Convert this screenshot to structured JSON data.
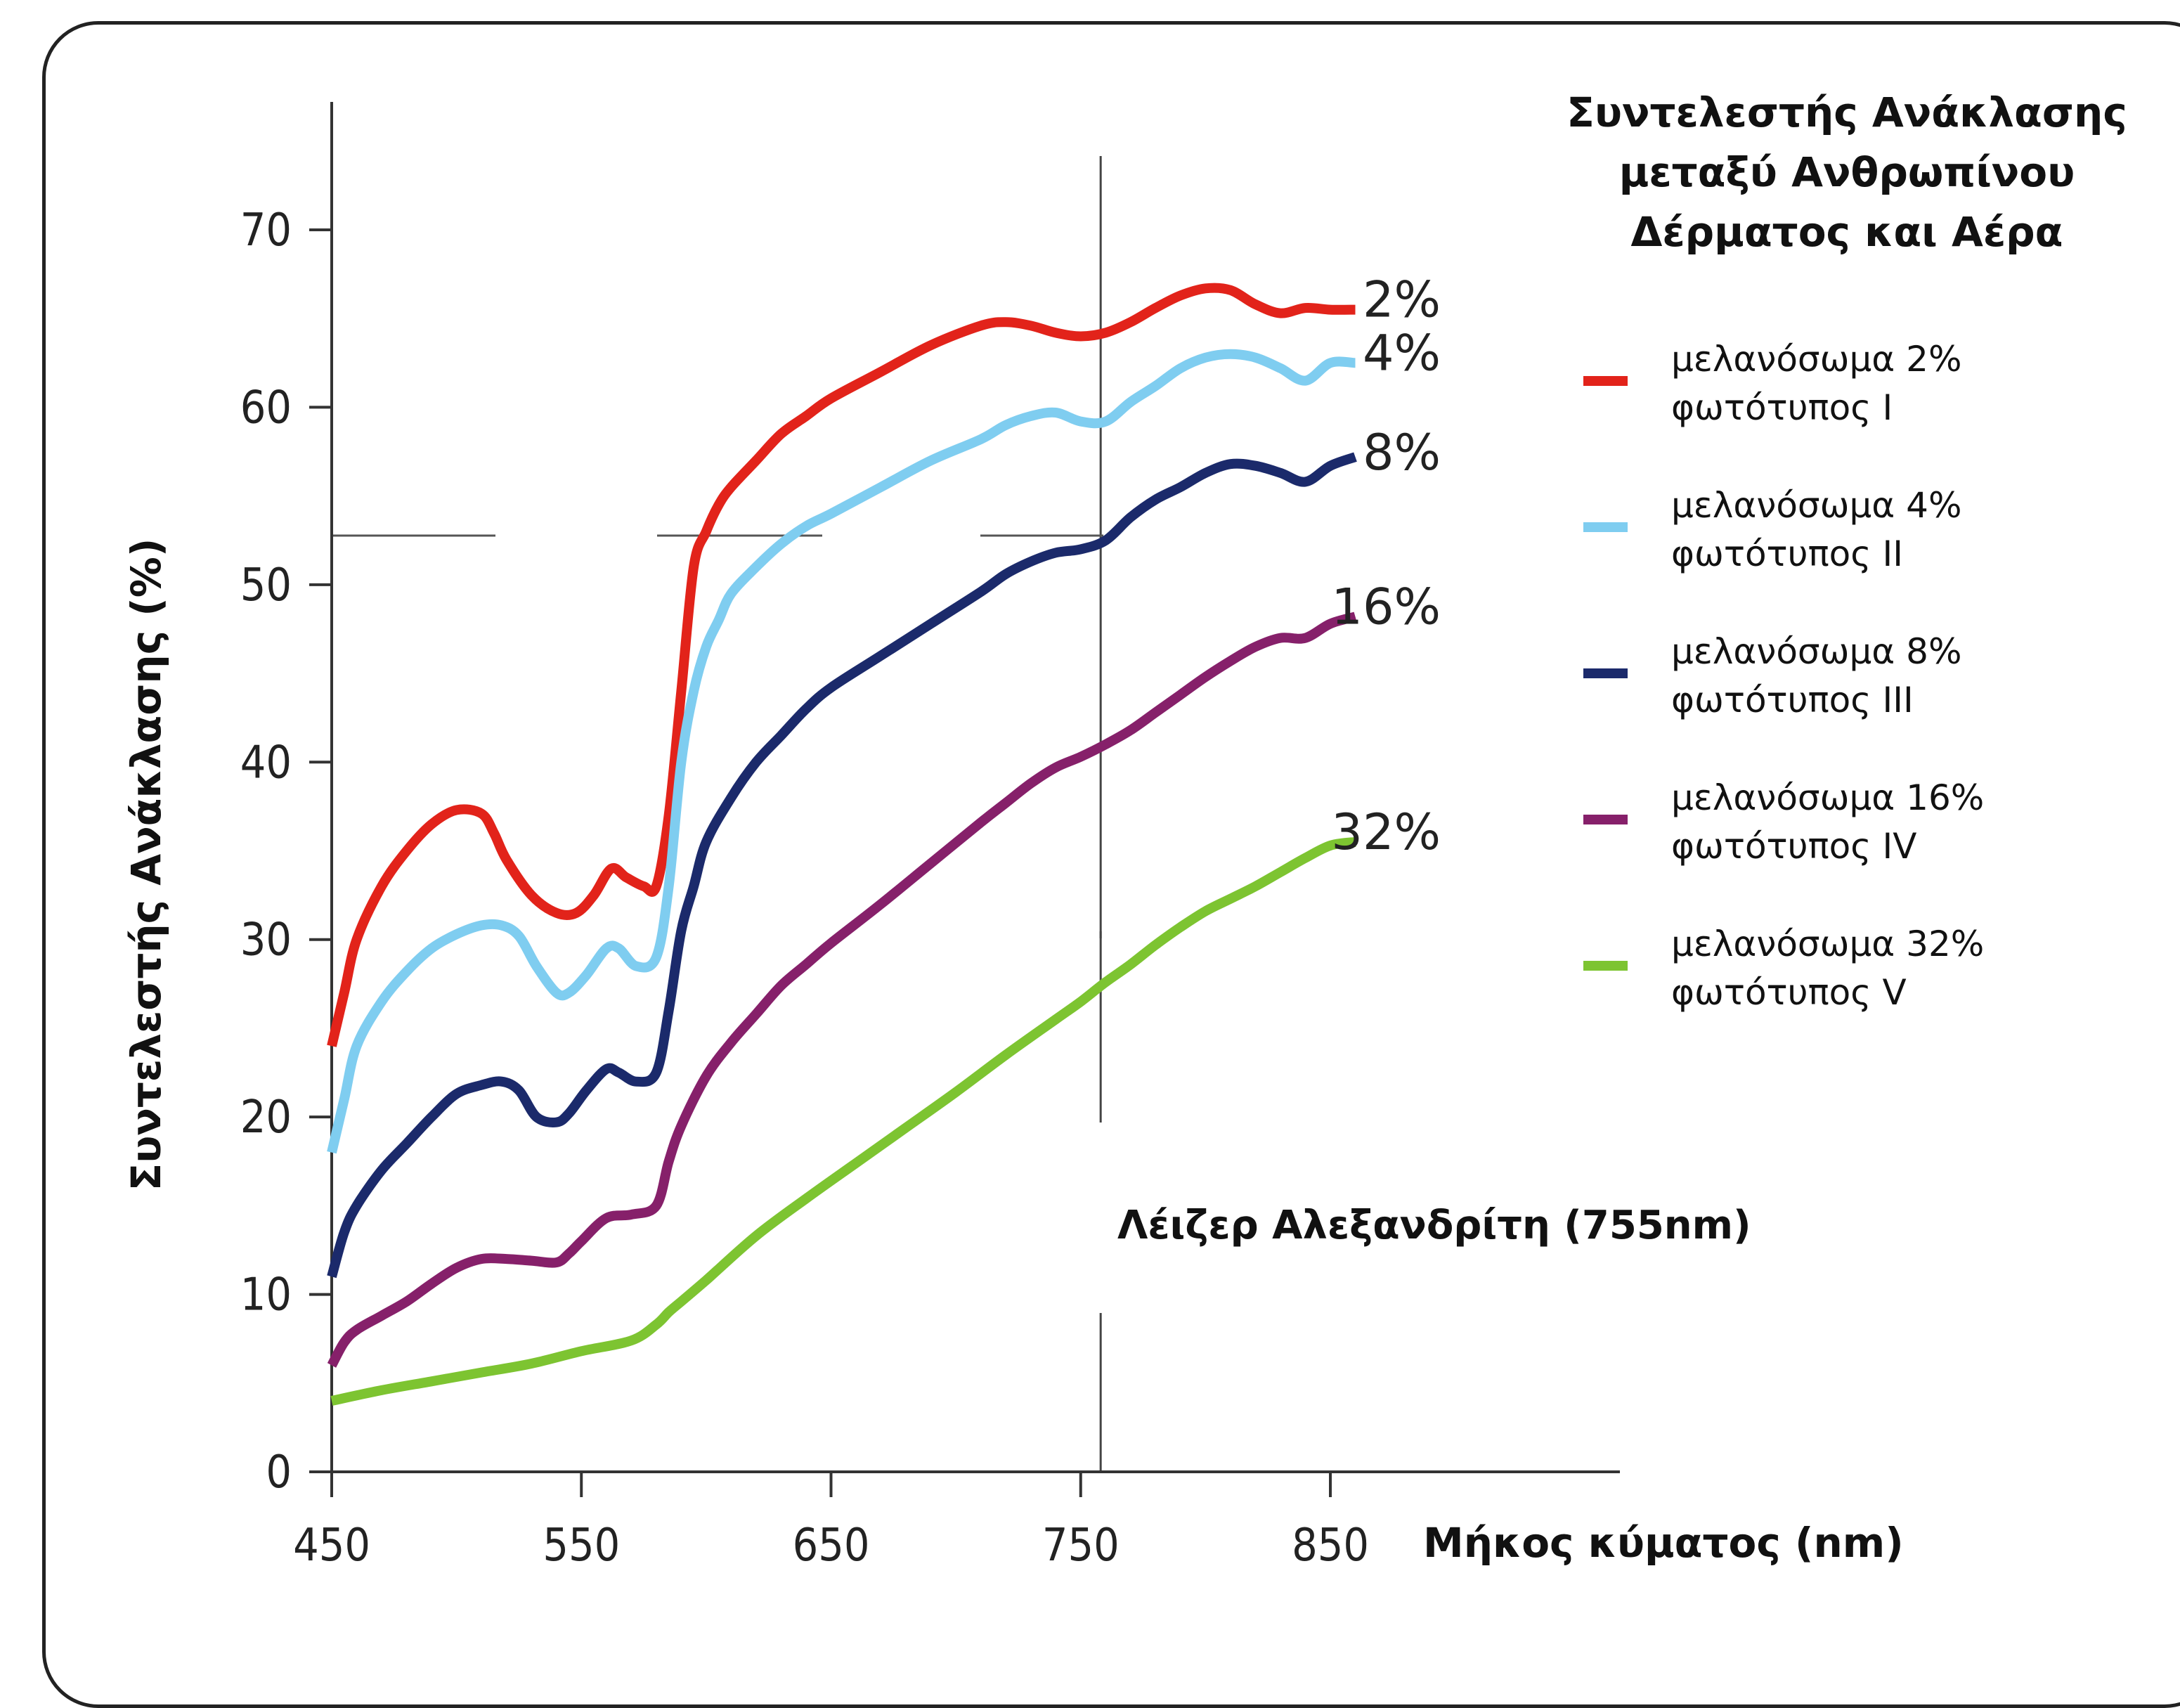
{
  "chart_data": {
    "type": "line",
    "title": "Συντελεστής Ανάκλασης μεταξύ Ανθρωπίνου Δέρματος και Αέρα",
    "title_lines": [
      "Συντελεστής Ανάκλασης",
      "μεταξύ Ανθρωπίνου",
      "Δέρματος και Αέρα"
    ],
    "xlabel": "Μήκος κύματος (nm)",
    "ylabel": "Συντελεστής Ανάκλασης (%)",
    "xlim": [
      450,
      860
    ],
    "ylim": [
      0,
      70
    ],
    "xticks": [
      450,
      550,
      650,
      750,
      850
    ],
    "yticks": [
      0,
      10,
      20,
      30,
      40,
      50,
      60,
      70
    ],
    "grid": false,
    "legend_position": "right",
    "annotation": {
      "text": "Λέιζερ Αλεξανδρίτη (755nm)",
      "x": 758
    },
    "series": [
      {
        "name": "μελανόσωμα 2%",
        "legend_line2": "φωτότυπος I",
        "end_label": "2%",
        "color": "#e2231a",
        "x": [
          450,
          455,
          460,
          470,
          480,
          490,
          500,
          510,
          515,
          520,
          530,
          540,
          548,
          555,
          562,
          568,
          575,
          580,
          585,
          590,
          595,
          600,
          605,
          610,
          620,
          630,
          640,
          650,
          670,
          690,
          710,
          720,
          730,
          740,
          750,
          760,
          770,
          780,
          790,
          800,
          810,
          820,
          830,
          840,
          850,
          860
        ],
        "y": [
          24,
          27,
          30,
          33,
          35,
          36.5,
          37.3,
          37.1,
          36,
          34.5,
          32.5,
          31.5,
          31.5,
          32.5,
          34,
          33.5,
          33,
          33,
          37,
          44,
          51,
          53,
          54.5,
          55.5,
          57,
          58.5,
          59.5,
          60.5,
          62,
          63.5,
          64.6,
          64.8,
          64.6,
          64.2,
          64,
          64.2,
          64.8,
          65.6,
          66.3,
          66.7,
          66.6,
          65.8,
          65.3,
          65.6,
          65.5,
          65.5
        ]
      },
      {
        "name": "μελανόσωμα 4%",
        "legend_line2": "φωτότυπος II",
        "end_label": "4%",
        "color": "#7fcdf0",
        "x": [
          450,
          455,
          460,
          470,
          480,
          490,
          500,
          510,
          518,
          525,
          532,
          540,
          545,
          552,
          560,
          565,
          572,
          580,
          585,
          590,
          595,
          600,
          605,
          610,
          620,
          630,
          640,
          650,
          670,
          690,
          710,
          720,
          730,
          740,
          750,
          760,
          770,
          780,
          790,
          800,
          810,
          820,
          830,
          840,
          850,
          860
        ],
        "y": [
          18,
          21,
          24,
          26.5,
          28.2,
          29.5,
          30.3,
          30.8,
          30.8,
          30.2,
          28.5,
          27,
          27,
          28,
          29.5,
          29.5,
          28.5,
          29,
          33,
          40,
          44,
          46.5,
          48,
          49.5,
          51,
          52.3,
          53.3,
          54,
          55.5,
          57,
          58.2,
          59,
          59.5,
          59.7,
          59.2,
          59.2,
          60.3,
          61.2,
          62.2,
          62.8,
          63,
          62.8,
          62.2,
          61.5,
          62.5,
          62.5
        ]
      },
      {
        "name": "μελανόσωμα 8%",
        "legend_line2": "φωτότυπος III",
        "end_label": "8%",
        "color": "#1b2a6b",
        "x": [
          450,
          455,
          460,
          470,
          480,
          490,
          500,
          510,
          518,
          525,
          532,
          540,
          545,
          552,
          560,
          565,
          572,
          580,
          585,
          590,
          595,
          600,
          610,
          620,
          630,
          640,
          650,
          670,
          690,
          710,
          720,
          730,
          740,
          750,
          760,
          770,
          780,
          790,
          800,
          810,
          820,
          830,
          840,
          850,
          860
        ],
        "y": [
          11,
          13.5,
          15,
          17,
          18.5,
          20,
          21.3,
          21.8,
          22,
          21.5,
          20,
          19.7,
          20.2,
          21.5,
          22.7,
          22.5,
          22,
          22.5,
          26,
          30.5,
          33,
          35.5,
          38,
          40,
          41.5,
          43,
          44.2,
          46,
          47.8,
          49.6,
          50.6,
          51.3,
          51.8,
          52,
          52.5,
          53.8,
          54.8,
          55.5,
          56.3,
          56.8,
          56.7,
          56.3,
          55.8,
          56.7,
          57.2
        ]
      },
      {
        "name": "μελανόσωμα 16%",
        "legend_line2": "φωτότυπος IV",
        "end_label": "16%",
        "color": "#86206a",
        "x": [
          450,
          455,
          460,
          470,
          480,
          490,
          500,
          510,
          520,
          530,
          540,
          545,
          550,
          560,
          570,
          580,
          585,
          590,
          600,
          610,
          620,
          630,
          640,
          650,
          670,
          690,
          710,
          720,
          730,
          740,
          750,
          760,
          770,
          780,
          790,
          800,
          810,
          820,
          830,
          840,
          850,
          860
        ],
        "y": [
          6,
          7.3,
          8,
          8.8,
          9.6,
          10.6,
          11.5,
          12,
          12,
          11.9,
          11.8,
          12.3,
          13,
          14.3,
          14.5,
          15,
          17.5,
          19.5,
          22.3,
          24.2,
          25.8,
          27.4,
          28.6,
          29.8,
          32,
          34.3,
          36.6,
          37.7,
          38.8,
          39.7,
          40.3,
          41,
          41.8,
          42.8,
          43.8,
          44.8,
          45.7,
          46.5,
          47,
          47,
          47.8,
          48.2
        ]
      },
      {
        "name": "μελανόσωμα 32%",
        "legend_line2": "φωτότυπος V",
        "end_label": "32%",
        "color": "#7dc431",
        "x": [
          450,
          470,
          490,
          510,
          530,
          550,
          570,
          580,
          585,
          590,
          600,
          620,
          640,
          660,
          680,
          700,
          720,
          740,
          750,
          760,
          770,
          780,
          790,
          800,
          810,
          820,
          830,
          840,
          850,
          860
        ],
        "y": [
          4,
          4.6,
          5.1,
          5.6,
          6.1,
          6.8,
          7.4,
          8.3,
          9,
          9.6,
          10.8,
          13.3,
          15.4,
          17.4,
          19.4,
          21.4,
          23.5,
          25.5,
          26.5,
          27.6,
          28.6,
          29.7,
          30.7,
          31.6,
          32.3,
          33,
          33.8,
          34.6,
          35.3,
          35.5
        ]
      }
    ]
  }
}
